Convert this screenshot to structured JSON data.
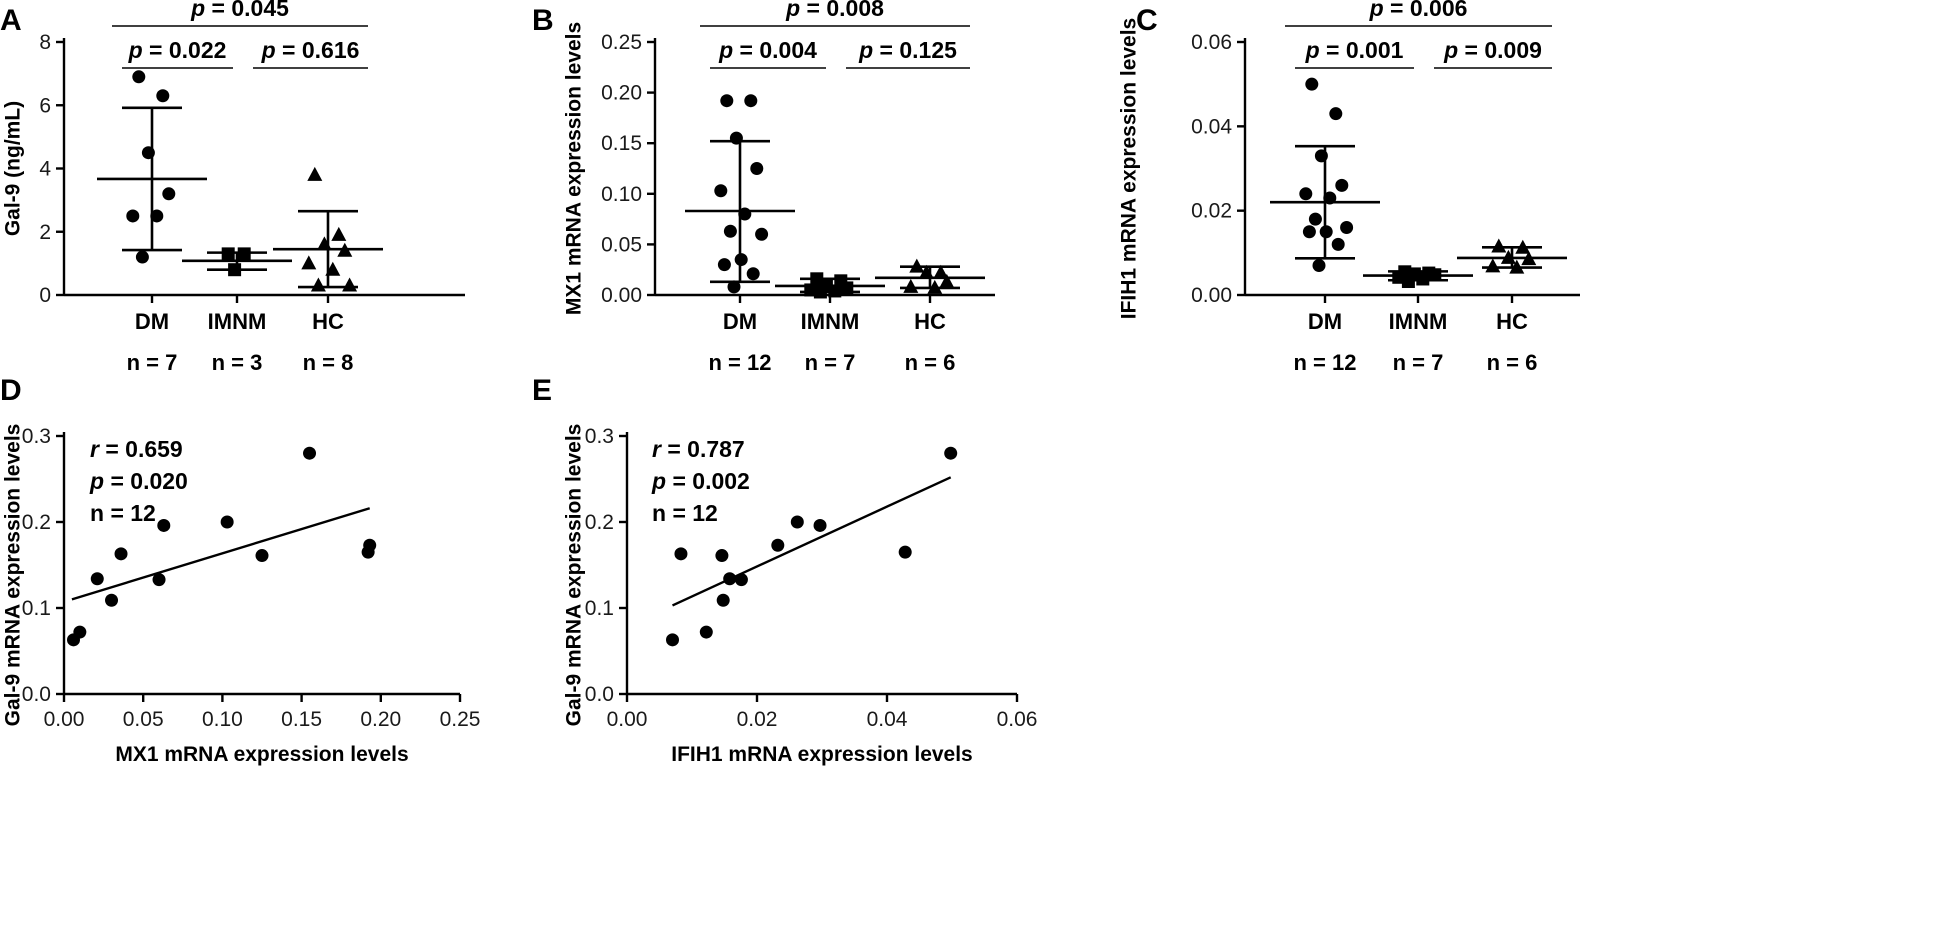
{
  "figure_title": "",
  "chart_data": [
    {
      "panel": "A",
      "type": "scatter",
      "ylabel": "Gal-9 (ng/mL)",
      "ylim": [
        0,
        8
      ],
      "yticks": [
        0,
        2,
        4,
        6,
        8
      ],
      "yticks_text": [
        "0",
        "2",
        "4",
        "6",
        "8"
      ],
      "groups": [
        {
          "name": "DM",
          "n_label": "n = 7",
          "marker": "circle",
          "values": [
            6.9,
            6.3,
            4.5,
            3.2,
            2.5,
            2.5,
            1.2
          ],
          "mean": 3.67,
          "err_low": 1.42,
          "err_high": 5.92
        },
        {
          "name": "IMNM",
          "n_label": "n = 3",
          "marker": "square",
          "values": [
            1.3,
            1.3,
            0.8
          ],
          "mean": 1.08,
          "err_low": 0.8,
          "err_high": 1.34
        },
        {
          "name": "HC",
          "n_label": "n = 8",
          "marker": "triangle",
          "values": [
            3.8,
            1.9,
            1.6,
            1.4,
            1.0,
            0.8,
            0.3,
            0.3
          ],
          "mean": 1.45,
          "err_low": 0.25,
          "err_high": 2.65
        }
      ],
      "comparisons": [
        {
          "prefix": "p",
          "text": " = 0.045",
          "from": 0,
          "to": 2,
          "level": 2
        },
        {
          "prefix": "p",
          "text": " = 0.022",
          "from": 0,
          "to": 1,
          "level": 1
        },
        {
          "prefix": "p",
          "text": " = 0.616",
          "from": 1,
          "to": 2,
          "level": 1
        }
      ]
    },
    {
      "panel": "B",
      "type": "scatter",
      "ylabel": "MX1 mRNA expression levels",
      "ylim": [
        0,
        0.25
      ],
      "yticks": [
        0,
        0.05,
        0.1,
        0.15,
        0.2,
        0.25
      ],
      "yticks_text": [
        "0.00",
        "0.05",
        "0.10",
        "0.15",
        "0.20",
        "0.25"
      ],
      "groups": [
        {
          "name": "DM",
          "n_label": "n = 12",
          "marker": "circle",
          "values": [
            0.192,
            0.192,
            0.155,
            0.125,
            0.103,
            0.08,
            0.063,
            0.06,
            0.035,
            0.03,
            0.021,
            0.008
          ],
          "mean": 0.083,
          "err_low": 0.013,
          "err_high": 0.152
        },
        {
          "name": "IMNM",
          "n_label": "n = 7",
          "marker": "square",
          "values": [
            0.016,
            0.014,
            0.01,
            0.007,
            0.005,
            0.004,
            0.003
          ],
          "mean": 0.009,
          "err_low": 0.003,
          "err_high": 0.016
        },
        {
          "name": "HC",
          "n_label": "n = 6",
          "marker": "triangle",
          "values": [
            0.028,
            0.022,
            0.022,
            0.013,
            0.008,
            0.007
          ],
          "mean": 0.017,
          "err_low": 0.007,
          "err_high": 0.028
        }
      ],
      "comparisons": [
        {
          "prefix": "p",
          "text": " = 0.008",
          "from": 0,
          "to": 2,
          "level": 2
        },
        {
          "prefix": "p",
          "text": " = 0.004",
          "from": 0,
          "to": 1,
          "level": 1
        },
        {
          "prefix": "p",
          "text": " = 0.125",
          "from": 1,
          "to": 2,
          "level": 1
        }
      ]
    },
    {
      "panel": "C",
      "type": "scatter",
      "ylabel": "IFIH1  mRNA expression levels",
      "ylim": [
        0,
        0.06
      ],
      "yticks": [
        0,
        0.02,
        0.04,
        0.06
      ],
      "yticks_text": [
        "0.00",
        "0.02",
        "0.04",
        "0.06"
      ],
      "groups": [
        {
          "name": "DM",
          "n_label": "n = 12",
          "marker": "circle",
          "values": [
            0.05,
            0.043,
            0.033,
            0.026,
            0.024,
            0.023,
            0.018,
            0.016,
            0.015,
            0.015,
            0.012,
            0.007
          ],
          "mean": 0.022,
          "err_low": 0.0087,
          "err_high": 0.0353
        },
        {
          "name": "IMNM",
          "n_label": "n = 7",
          "marker": "square",
          "values": [
            0.0055,
            0.0052,
            0.005,
            0.0048,
            0.0042,
            0.0038,
            0.0032
          ],
          "mean": 0.0046,
          "err_low": 0.0035,
          "err_high": 0.0056
        },
        {
          "name": "HC",
          "n_label": "n = 6",
          "marker": "triangle",
          "values": [
            0.0115,
            0.0112,
            0.0088,
            0.0085,
            0.0068,
            0.0065
          ],
          "mean": 0.0088,
          "err_low": 0.0065,
          "err_high": 0.0113
        }
      ],
      "comparisons": [
        {
          "prefix": "p",
          "text": " = 0.006",
          "from": 0,
          "to": 2,
          "level": 2
        },
        {
          "prefix": "p",
          "text": " = 0.001",
          "from": 0,
          "to": 1,
          "level": 1
        },
        {
          "prefix": "p",
          "text": " = 0.009",
          "from": 1,
          "to": 2,
          "level": 1
        }
      ]
    },
    {
      "panel": "D",
      "type": "scatter",
      "xlabel": "MX1 mRNA expression levels",
      "ylabel": "Gal-9 mRNA expression levels",
      "xlim": [
        0,
        0.25
      ],
      "ylim": [
        0,
        0.3
      ],
      "xticks": [
        0,
        0.05,
        0.1,
        0.15,
        0.2,
        0.25
      ],
      "xticks_text": [
        "0.00",
        "0.05",
        "0.10",
        "0.15",
        "0.20",
        "0.25"
      ],
      "yticks": [
        0,
        0.1,
        0.2,
        0.3
      ],
      "yticks_text": [
        "0.0",
        "0.1",
        "0.2",
        "0.3"
      ],
      "x": [
        0.006,
        0.01,
        0.021,
        0.03,
        0.036,
        0.06,
        0.063,
        0.103,
        0.125,
        0.155,
        0.192,
        0.193
      ],
      "y": [
        0.063,
        0.072,
        0.134,
        0.109,
        0.163,
        0.133,
        0.196,
        0.2,
        0.161,
        0.28,
        0.165,
        0.173
      ],
      "fit": {
        "x": [
          0.005,
          0.193
        ],
        "y": [
          0.11,
          0.216
        ]
      },
      "stats": [
        {
          "key": "r",
          "text": " = 0.659"
        },
        {
          "key": "p",
          "text": " = 0.020"
        },
        {
          "key": "",
          "text": "n = 12"
        }
      ]
    },
    {
      "panel": "E",
      "type": "scatter",
      "xlabel": "IFIH1 mRNA expression levels",
      "ylabel": "Gal-9 mRNA expression levels",
      "xlim": [
        0,
        0.06
      ],
      "ylim": [
        0,
        0.3
      ],
      "xticks": [
        0,
        0.02,
        0.04,
        0.06
      ],
      "xticks_text": [
        "0.00",
        "0.02",
        "0.04",
        "0.06"
      ],
      "yticks": [
        0,
        0.1,
        0.2,
        0.3
      ],
      "yticks_text": [
        "0.0",
        "0.1",
        "0.2",
        "0.3"
      ],
      "x": [
        0.007,
        0.0083,
        0.0122,
        0.0146,
        0.0148,
        0.0158,
        0.0176,
        0.0232,
        0.0262,
        0.0297,
        0.0428,
        0.0498
      ],
      "y": [
        0.063,
        0.163,
        0.072,
        0.161,
        0.109,
        0.134,
        0.133,
        0.173,
        0.2,
        0.196,
        0.165,
        0.28
      ],
      "fit": {
        "x": [
          0.007,
          0.0498
        ],
        "y": [
          0.103,
          0.252
        ]
      },
      "stats": [
        {
          "key": "r",
          "text": " = 0.787"
        },
        {
          "key": "p",
          "text": " = 0.002"
        },
        {
          "key": "",
          "text": "n = 12"
        }
      ]
    }
  ]
}
